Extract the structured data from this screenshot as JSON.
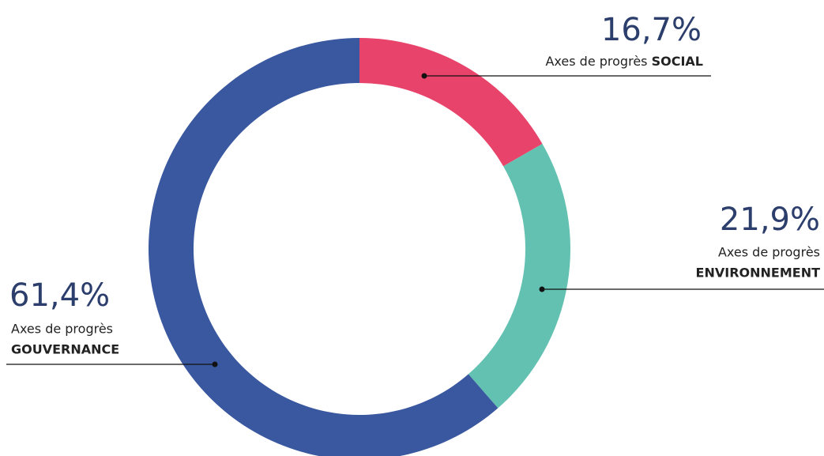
{
  "chart_data": {
    "type": "donut",
    "series_label": "Axes de progrès",
    "categories": [
      "SOCIAL",
      "ENVIRONNEMENT",
      "GOUVERNANCE"
    ],
    "values": [
      16.7,
      21.9,
      61.4
    ],
    "value_labels": [
      "16,7%",
      "21,9%",
      "61,4%"
    ],
    "colors": [
      "#e8436a",
      "#63c1b2",
      "#3a58a0"
    ]
  }
}
